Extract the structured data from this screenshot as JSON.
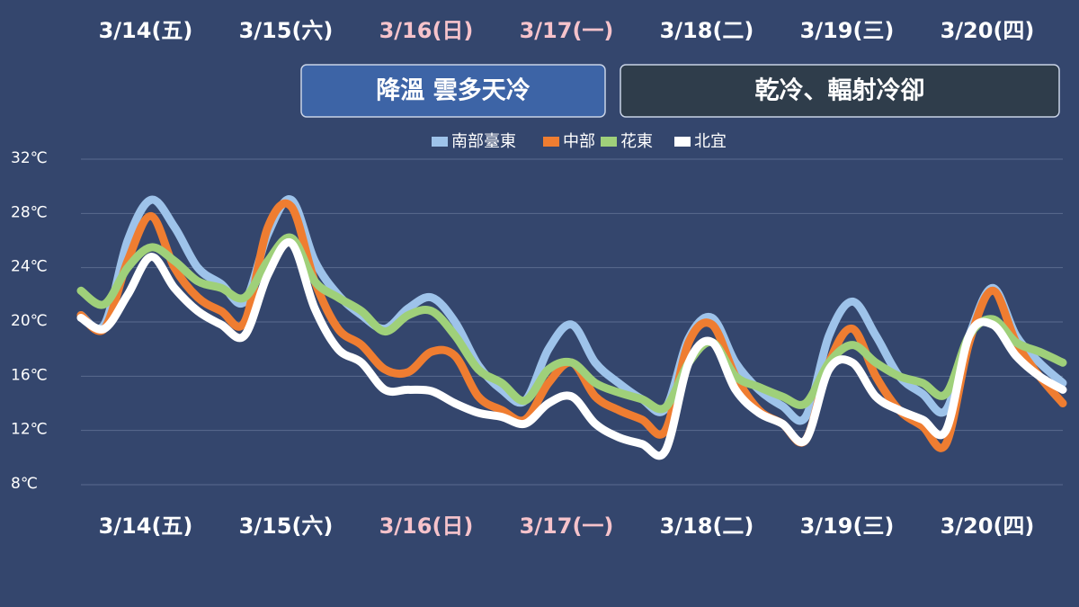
{
  "chart_data": {
    "type": "line",
    "x_labels": [
      "3/14(五)",
      "3/15(六)",
      "3/16(日)",
      "3/17(一)",
      "3/18(二)",
      "3/19(三)",
      "3/20(四)"
    ],
    "x_label_colors": [
      "#ffffff",
      "#ffffff",
      "#f6c3cb",
      "#f6c3cb",
      "#ffffff",
      "#ffffff",
      "#ffffff"
    ],
    "annotations": [
      {
        "text": "降溫 雲多天冷",
        "color": "#3d64a6"
      },
      {
        "text": "乾冷、輻射冷卻",
        "color": "#2f3d4b"
      }
    ],
    "ylim": [
      8,
      32
    ],
    "yticks": [
      {
        "value": 8,
        "label": "8℃"
      },
      {
        "value": 12,
        "label": "12℃"
      },
      {
        "value": 16,
        "label": "16℃"
      },
      {
        "value": 20,
        "label": "20℃"
      },
      {
        "value": 24,
        "label": "24℃"
      },
      {
        "value": 28,
        "label": "28℃"
      },
      {
        "value": 32,
        "label": "32℃"
      }
    ],
    "grid": true,
    "legend": "top",
    "series": [
      {
        "name": "南部臺東",
        "color": "#9ec3ea",
        "values": [
          20.5,
          19.8,
          26,
          29,
          27,
          24,
          22.8,
          21.5,
          26.5,
          29,
          24.5,
          22,
          20.5,
          19.5,
          21,
          21.8,
          20,
          16.8,
          15,
          14.2,
          18,
          19.8,
          17,
          15.5,
          14.3,
          13.6,
          18.8,
          20.3,
          17,
          15,
          13.8,
          13,
          19,
          21.5,
          19,
          16,
          14.7,
          13.5,
          19,
          22.5,
          19,
          17,
          15.5
        ]
      },
      {
        "name": "中部",
        "color": "#ef7d31",
        "values": [
          20.5,
          19.5,
          24.5,
          27.8,
          24,
          21.8,
          20.8,
          20,
          27,
          28.5,
          23,
          19.5,
          18.3,
          16.5,
          16.3,
          17.8,
          17.5,
          14.5,
          13.5,
          12.8,
          15.5,
          17,
          14.5,
          13.5,
          12.8,
          12,
          18.5,
          19.8,
          16,
          13.5,
          12.5,
          11.3,
          17,
          19.5,
          16,
          13.5,
          12.3,
          11,
          18.5,
          22.3,
          18.5,
          16,
          14
        ]
      },
      {
        "name": "花東",
        "color": "#9fd07a",
        "values": [
          22.3,
          21.3,
          24,
          25.5,
          24.5,
          23,
          22.5,
          21.8,
          24.5,
          26.2,
          23,
          21.8,
          20.8,
          19.3,
          20.5,
          20.8,
          19,
          16.5,
          15.5,
          14.2,
          16.5,
          17,
          15.5,
          14.8,
          14.3,
          13.7,
          17,
          18.5,
          16,
          15.2,
          14.5,
          14,
          17,
          18.3,
          17,
          16,
          15.5,
          14.7,
          19,
          20.2,
          18.5,
          17.8,
          17
        ]
      },
      {
        "name": "北宜",
        "color": "#ffffff",
        "values": [
          20.3,
          19.5,
          22,
          24.8,
          22.5,
          20.8,
          19.8,
          19,
          23.5,
          25.8,
          21,
          18,
          17,
          15,
          15,
          14.9,
          14,
          13.3,
          13,
          12.5,
          14,
          14.5,
          12.5,
          11.5,
          11,
          10.5,
          17,
          18.5,
          15,
          13.3,
          12.5,
          11.3,
          16.5,
          17,
          14.5,
          13.5,
          12.8,
          12,
          19,
          19.8,
          17.5,
          16,
          15
        ]
      }
    ]
  }
}
